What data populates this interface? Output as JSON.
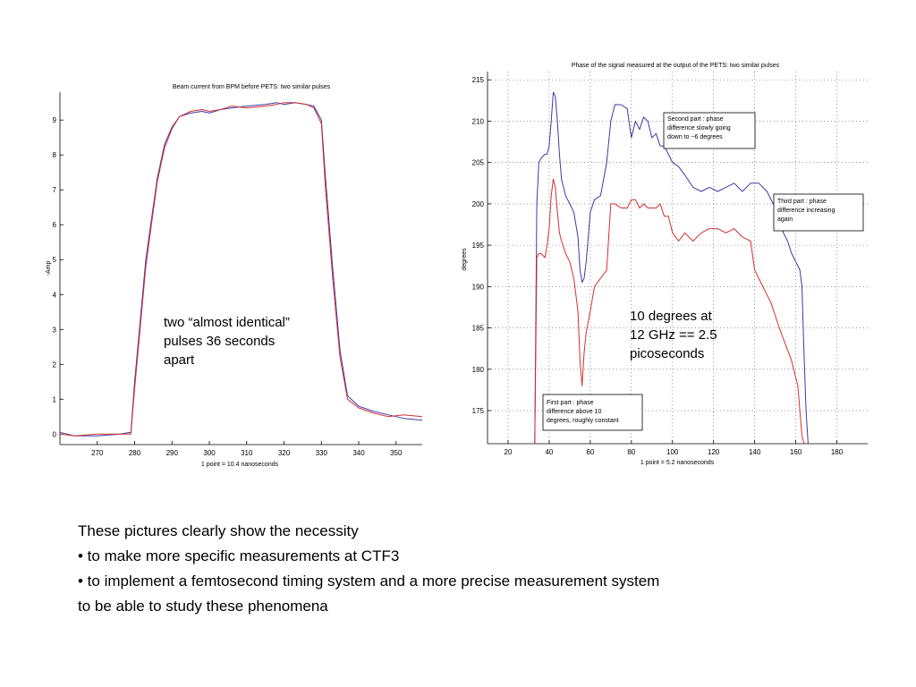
{
  "chart_data": [
    {
      "type": "line",
      "title": "Beam current from BPM before PETS: two similar pulses",
      "xlabel": "1 point = 10.4 nanoseconds",
      "ylabel": "-Amp",
      "xlim": [
        260,
        357
      ],
      "ylim": [
        -0.3,
        9.8
      ],
      "xticks": [
        270,
        280,
        290,
        300,
        310,
        320,
        330,
        340,
        350
      ],
      "yticks": [
        0,
        1,
        2,
        3,
        4,
        5,
        6,
        7,
        8,
        9
      ],
      "grid": false,
      "series": [
        {
          "color": "#3a3aa8",
          "x": [
            260,
            264,
            270,
            276,
            279,
            280,
            283,
            286,
            288,
            290,
            292,
            295,
            298,
            300,
            303,
            306,
            310,
            315,
            318,
            320,
            323,
            326,
            328,
            330,
            331,
            333,
            335,
            337,
            340,
            344,
            348,
            352,
            357
          ],
          "y": [
            0.05,
            -0.05,
            -0.05,
            0,
            0.05,
            1.5,
            5.0,
            7.3,
            8.3,
            8.8,
            9.1,
            9.2,
            9.25,
            9.2,
            9.3,
            9.35,
            9.4,
            9.45,
            9.5,
            9.45,
            9.5,
            9.45,
            9.4,
            9.0,
            7.5,
            4.8,
            2.4,
            1.1,
            0.8,
            0.65,
            0.55,
            0.45,
            0.4
          ]
        },
        {
          "color": "#d23030",
          "x": [
            260,
            264,
            270,
            276,
            279,
            280,
            283,
            286,
            288,
            290,
            292,
            295,
            298,
            300,
            303,
            306,
            310,
            315,
            318,
            320,
            323,
            326,
            328,
            330,
            331,
            333,
            335,
            337,
            340,
            344,
            348,
            352,
            357
          ],
          "y": [
            0.0,
            -0.05,
            0.0,
            0.0,
            0.0,
            1.3,
            4.8,
            7.2,
            8.2,
            8.75,
            9.1,
            9.25,
            9.3,
            9.25,
            9.3,
            9.4,
            9.35,
            9.4,
            9.45,
            9.5,
            9.5,
            9.45,
            9.35,
            8.9,
            7.2,
            4.5,
            2.2,
            1.0,
            0.75,
            0.6,
            0.5,
            0.55,
            0.5
          ]
        }
      ]
    },
    {
      "type": "line",
      "title": "Phase of the signal measured at the output of the PETS: two similar pulses",
      "xlabel": "1 point = 5.2 nanoseconds",
      "ylabel": "degrees",
      "xlim": [
        10,
        195
      ],
      "ylim": [
        171,
        216
      ],
      "xticks": [
        20,
        40,
        60,
        80,
        100,
        120,
        140,
        160,
        180
      ],
      "yticks": [
        175,
        180,
        185,
        190,
        195,
        200,
        205,
        210,
        215
      ],
      "grid": true,
      "series": [
        {
          "color": "#3a3aa8",
          "x": [
            33,
            34,
            35,
            36,
            38,
            39,
            40,
            41,
            42,
            43,
            44,
            45,
            46,
            48,
            50,
            52,
            54,
            55,
            56,
            57,
            58,
            60,
            62,
            65,
            68,
            70,
            72,
            75,
            78,
            80,
            82,
            84,
            86,
            88,
            90,
            92,
            94,
            96,
            98,
            100,
            103,
            106,
            110,
            114,
            118,
            122,
            126,
            130,
            134,
            138,
            142,
            146,
            150,
            152,
            154,
            156,
            158,
            160,
            162,
            163,
            164,
            165,
            166
          ],
          "y": [
            171,
            200,
            205,
            205.5,
            206,
            206,
            207,
            210,
            213.5,
            213,
            210,
            206,
            203,
            201,
            200,
            199,
            196,
            192,
            190.5,
            191,
            193,
            199,
            200.5,
            201,
            205,
            210,
            212,
            212,
            211.5,
            208,
            210,
            209,
            210.5,
            210,
            208,
            208.5,
            207,
            207,
            206,
            205,
            204.5,
            203.5,
            202,
            201.5,
            202,
            201.5,
            202,
            202.5,
            201.5,
            202.5,
            202.5,
            201.5,
            199.5,
            198,
            196.5,
            195.5,
            194,
            193,
            192,
            190,
            182,
            175,
            171
          ]
        },
        {
          "color": "#d23030",
          "x": [
            33,
            34,
            35,
            36,
            38,
            39,
            40,
            41,
            42,
            43,
            44,
            45,
            46,
            48,
            50,
            52,
            54,
            55,
            56,
            57,
            58,
            60,
            62,
            65,
            68,
            70,
            72,
            75,
            78,
            80,
            82,
            84,
            86,
            88,
            90,
            92,
            94,
            96,
            98,
            100,
            103,
            106,
            110,
            114,
            118,
            122,
            126,
            130,
            134,
            138,
            140,
            144,
            148,
            152,
            155,
            158,
            160,
            161,
            162,
            163,
            164
          ],
          "y": [
            171,
            193.5,
            194,
            194,
            193.5,
            195,
            197,
            201,
            203,
            202,
            199,
            196.5,
            195.5,
            194,
            193,
            191,
            187,
            181,
            178,
            182,
            184.5,
            187,
            190,
            191,
            192,
            200,
            200,
            199.5,
            199.5,
            200.5,
            200.5,
            199.5,
            200,
            199.5,
            199.5,
            199.5,
            200,
            198.5,
            198.5,
            196.5,
            195.5,
            196.5,
            195.5,
            196.5,
            197,
            197,
            196.5,
            197,
            196,
            195.5,
            192,
            190,
            188,
            185,
            183,
            181,
            179,
            178,
            175,
            172,
            171
          ]
        }
      ],
      "annotations": [
        {
          "lines": [
            "Second part : phase",
            "difference slowly going",
            "down to ~6 degrees"
          ]
        },
        {
          "lines": [
            "Third part : phase",
            "difference increasing",
            "again"
          ]
        },
        {
          "lines": [
            "First part : phase",
            "difference above 10",
            "degrees, roughly constant"
          ]
        }
      ]
    }
  ],
  "notes": {
    "left": [
      "two “almost identical”",
      "pulses 36 seconds",
      "apart"
    ],
    "right": [
      "10 degrees at",
      "12 GHz == 2.5",
      "picoseconds"
    ]
  },
  "caption": {
    "lines": [
      "These pictures  clearly show the necessity",
      "• to make more specific measurements at CTF3",
      "• to implement a femtosecond timing system and a more precise measurement system",
      "to be able to study these phenomena"
    ]
  }
}
